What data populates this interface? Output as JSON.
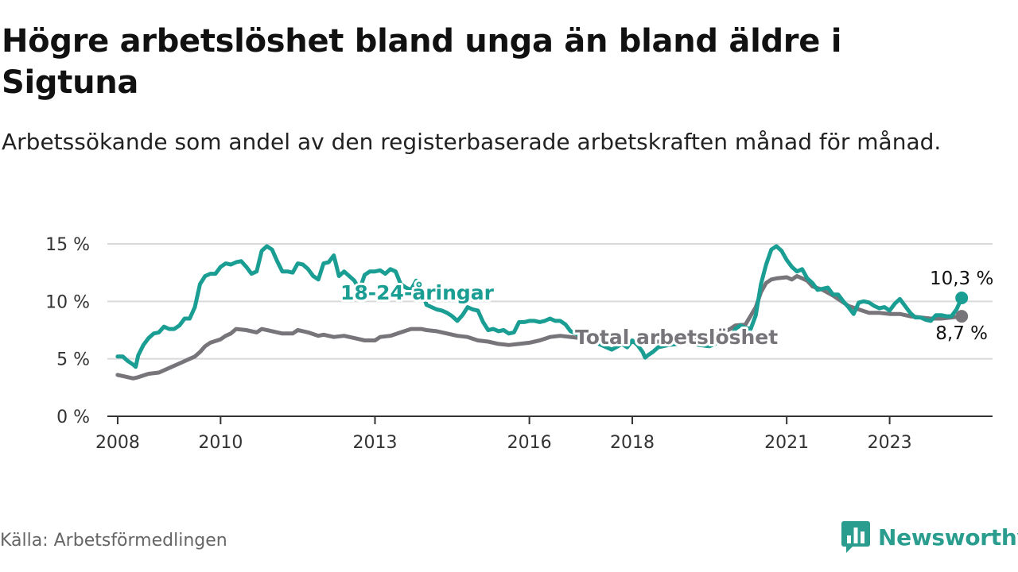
{
  "chart_data": {
    "type": "line",
    "title": "Högre arbetslöshet bland unga än bland äldre i Sigtuna",
    "subtitle": "Arbetssökande som andel av den registerbaserade arbetskraften månad för månad.",
    "source": "Källa: Arbetsförmedlingen",
    "brand": "Newsworthy",
    "ylim": [
      0,
      15
    ],
    "yticks": [
      {
        "value": 0,
        "label": "0 %"
      },
      {
        "value": 5,
        "label": "5 %"
      },
      {
        "value": 10,
        "label": "10 %"
      },
      {
        "value": 15,
        "label": "15 %"
      }
    ],
    "xlim": [
      2007.8,
      2025.0
    ],
    "xticks": [
      {
        "value": 2008,
        "label": "2008"
      },
      {
        "value": 2010,
        "label": "2010"
      },
      {
        "value": 2013,
        "label": "2013"
      },
      {
        "value": 2016,
        "label": "2016"
      },
      {
        "value": 2018,
        "label": "2018"
      },
      {
        "value": 2021,
        "label": "2021"
      },
      {
        "value": 2023,
        "label": "2023"
      }
    ],
    "series": [
      {
        "name": "18-24-åringar",
        "label": "18-24-åringar",
        "color": "#1a9e93",
        "end_label": "10,3 %",
        "points": [
          [
            2008.0,
            5.2
          ],
          [
            2008.1,
            5.2
          ],
          [
            2008.2,
            4.8
          ],
          [
            2008.3,
            4.5
          ],
          [
            2008.35,
            4.3
          ],
          [
            2008.4,
            5.3
          ],
          [
            2008.5,
            6.2
          ],
          [
            2008.6,
            6.8
          ],
          [
            2008.7,
            7.2
          ],
          [
            2008.8,
            7.3
          ],
          [
            2008.9,
            7.8
          ],
          [
            2009.0,
            7.6
          ],
          [
            2009.1,
            7.6
          ],
          [
            2009.2,
            7.9
          ],
          [
            2009.3,
            8.5
          ],
          [
            2009.4,
            8.5
          ],
          [
            2009.5,
            9.5
          ],
          [
            2009.6,
            11.5
          ],
          [
            2009.7,
            12.2
          ],
          [
            2009.8,
            12.4
          ],
          [
            2009.9,
            12.4
          ],
          [
            2010.0,
            13.0
          ],
          [
            2010.1,
            13.3
          ],
          [
            2010.2,
            13.2
          ],
          [
            2010.3,
            13.4
          ],
          [
            2010.4,
            13.5
          ],
          [
            2010.5,
            13.0
          ],
          [
            2010.6,
            12.4
          ],
          [
            2010.7,
            12.6
          ],
          [
            2010.8,
            14.4
          ],
          [
            2010.9,
            14.8
          ],
          [
            2011.0,
            14.5
          ],
          [
            2011.1,
            13.5
          ],
          [
            2011.2,
            12.6
          ],
          [
            2011.3,
            12.6
          ],
          [
            2011.4,
            12.5
          ],
          [
            2011.5,
            13.3
          ],
          [
            2011.6,
            13.2
          ],
          [
            2011.7,
            12.8
          ],
          [
            2011.8,
            12.2
          ],
          [
            2011.9,
            11.9
          ],
          [
            2012.0,
            13.3
          ],
          [
            2012.1,
            13.4
          ],
          [
            2012.2,
            14.0
          ],
          [
            2012.3,
            12.2
          ],
          [
            2012.4,
            12.6
          ],
          [
            2012.5,
            12.2
          ],
          [
            2012.6,
            11.8
          ],
          [
            2012.7,
            11.0
          ],
          [
            2012.8,
            12.3
          ],
          [
            2012.9,
            12.6
          ],
          [
            2013.0,
            12.6
          ],
          [
            2013.1,
            12.7
          ],
          [
            2013.2,
            12.4
          ],
          [
            2013.3,
            12.8
          ],
          [
            2013.4,
            12.6
          ],
          [
            2013.5,
            11.5
          ],
          [
            2013.6,
            11.2
          ],
          [
            2013.7,
            11.0
          ],
          [
            2013.8,
            11.8
          ],
          [
            2013.9,
            11.2
          ],
          [
            2014.0,
            9.7
          ],
          [
            2014.1,
            9.5
          ],
          [
            2014.2,
            9.3
          ],
          [
            2014.3,
            9.2
          ],
          [
            2014.4,
            9.0
          ],
          [
            2014.5,
            8.7
          ],
          [
            2014.6,
            8.3
          ],
          [
            2014.7,
            8.8
          ],
          [
            2014.8,
            9.5
          ],
          [
            2014.9,
            9.3
          ],
          [
            2015.0,
            9.2
          ],
          [
            2015.1,
            8.2
          ],
          [
            2015.2,
            7.5
          ],
          [
            2015.3,
            7.6
          ],
          [
            2015.4,
            7.4
          ],
          [
            2015.5,
            7.5
          ],
          [
            2015.6,
            7.2
          ],
          [
            2015.7,
            7.3
          ],
          [
            2015.8,
            8.2
          ],
          [
            2015.9,
            8.2
          ],
          [
            2016.0,
            8.3
          ],
          [
            2016.1,
            8.3
          ],
          [
            2016.2,
            8.2
          ],
          [
            2016.3,
            8.3
          ],
          [
            2016.4,
            8.5
          ],
          [
            2016.5,
            8.3
          ],
          [
            2016.6,
            8.3
          ],
          [
            2016.7,
            8.0
          ],
          [
            2016.8,
            7.4
          ],
          [
            2017.0,
            7.0
          ],
          [
            2017.2,
            6.6
          ],
          [
            2017.4,
            6.2
          ],
          [
            2017.6,
            5.8
          ],
          [
            2017.8,
            6.3
          ],
          [
            2017.9,
            6.0
          ],
          [
            2018.0,
            6.6
          ],
          [
            2018.1,
            6.2
          ],
          [
            2018.2,
            5.6
          ],
          [
            2018.25,
            5.1
          ],
          [
            2018.3,
            5.3
          ],
          [
            2018.4,
            5.6
          ],
          [
            2018.5,
            6.0
          ],
          [
            2018.7,
            6.2
          ],
          [
            2018.9,
            6.3
          ],
          [
            2019.1,
            6.4
          ],
          [
            2019.3,
            6.2
          ],
          [
            2019.5,
            6.1
          ],
          [
            2019.7,
            6.5
          ],
          [
            2019.9,
            6.8
          ],
          [
            2020.0,
            7.6
          ],
          [
            2020.1,
            7.9
          ],
          [
            2020.2,
            7.7
          ],
          [
            2020.3,
            7.6
          ],
          [
            2020.4,
            8.8
          ],
          [
            2020.5,
            11.5
          ],
          [
            2020.6,
            13.2
          ],
          [
            2020.7,
            14.5
          ],
          [
            2020.8,
            14.8
          ],
          [
            2020.9,
            14.4
          ],
          [
            2021.0,
            13.6
          ],
          [
            2021.1,
            13.0
          ],
          [
            2021.2,
            12.6
          ],
          [
            2021.3,
            12.8
          ],
          [
            2021.4,
            12.0
          ],
          [
            2021.5,
            11.6
          ],
          [
            2021.6,
            11.0
          ],
          [
            2021.7,
            11.1
          ],
          [
            2021.8,
            11.2
          ],
          [
            2021.9,
            10.6
          ],
          [
            2022.0,
            10.6
          ],
          [
            2022.1,
            10.0
          ],
          [
            2022.2,
            9.5
          ],
          [
            2022.3,
            8.9
          ],
          [
            2022.4,
            9.9
          ],
          [
            2022.5,
            10.0
          ],
          [
            2022.6,
            9.9
          ],
          [
            2022.7,
            9.6
          ],
          [
            2022.8,
            9.4
          ],
          [
            2022.9,
            9.5
          ],
          [
            2023.0,
            9.2
          ],
          [
            2023.1,
            9.8
          ],
          [
            2023.2,
            10.2
          ],
          [
            2023.3,
            9.6
          ],
          [
            2023.4,
            9.0
          ],
          [
            2023.5,
            8.6
          ],
          [
            2023.6,
            8.6
          ],
          [
            2023.7,
            8.4
          ],
          [
            2023.8,
            8.3
          ],
          [
            2023.9,
            8.8
          ],
          [
            2024.0,
            8.8
          ],
          [
            2024.1,
            8.7
          ],
          [
            2024.2,
            8.7
          ],
          [
            2024.3,
            9.3
          ],
          [
            2024.4,
            10.3
          ]
        ]
      },
      {
        "name": "Total arbetslöshet",
        "label": "Total arbetslöshet",
        "color": "#77757a",
        "end_label": "8,7 %",
        "points": [
          [
            2008.0,
            3.6
          ],
          [
            2008.2,
            3.4
          ],
          [
            2008.3,
            3.3
          ],
          [
            2008.4,
            3.4
          ],
          [
            2008.6,
            3.7
          ],
          [
            2008.8,
            3.8
          ],
          [
            2009.0,
            4.2
          ],
          [
            2009.2,
            4.6
          ],
          [
            2009.4,
            5.0
          ],
          [
            2009.5,
            5.2
          ],
          [
            2009.6,
            5.6
          ],
          [
            2009.7,
            6.1
          ],
          [
            2009.8,
            6.4
          ],
          [
            2010.0,
            6.7
          ],
          [
            2010.1,
            7.0
          ],
          [
            2010.2,
            7.2
          ],
          [
            2010.3,
            7.6
          ],
          [
            2010.5,
            7.5
          ],
          [
            2010.7,
            7.3
          ],
          [
            2010.8,
            7.6
          ],
          [
            2011.0,
            7.4
          ],
          [
            2011.2,
            7.2
          ],
          [
            2011.4,
            7.2
          ],
          [
            2011.5,
            7.5
          ],
          [
            2011.7,
            7.3
          ],
          [
            2011.9,
            7.0
          ],
          [
            2012.0,
            7.1
          ],
          [
            2012.2,
            6.9
          ],
          [
            2012.4,
            7.0
          ],
          [
            2012.6,
            6.8
          ],
          [
            2012.8,
            6.6
          ],
          [
            2013.0,
            6.6
          ],
          [
            2013.1,
            6.9
          ],
          [
            2013.3,
            7.0
          ],
          [
            2013.5,
            7.3
          ],
          [
            2013.7,
            7.6
          ],
          [
            2013.9,
            7.6
          ],
          [
            2014.0,
            7.5
          ],
          [
            2014.2,
            7.4
          ],
          [
            2014.4,
            7.2
          ],
          [
            2014.6,
            7.0
          ],
          [
            2014.8,
            6.9
          ],
          [
            2015.0,
            6.6
          ],
          [
            2015.2,
            6.5
          ],
          [
            2015.4,
            6.3
          ],
          [
            2015.6,
            6.2
          ],
          [
            2015.8,
            6.3
          ],
          [
            2016.0,
            6.4
          ],
          [
            2016.2,
            6.6
          ],
          [
            2016.4,
            6.9
          ],
          [
            2016.6,
            7.0
          ],
          [
            2016.8,
            6.9
          ],
          [
            2017.0,
            6.8
          ],
          [
            2017.3,
            6.5
          ],
          [
            2017.6,
            6.5
          ],
          [
            2017.9,
            6.5
          ],
          [
            2018.2,
            6.4
          ],
          [
            2018.5,
            6.5
          ],
          [
            2018.8,
            6.6
          ],
          [
            2019.1,
            6.6
          ],
          [
            2019.4,
            6.8
          ],
          [
            2019.7,
            7.2
          ],
          [
            2019.9,
            7.6
          ],
          [
            2020.0,
            7.9
          ],
          [
            2020.2,
            8.0
          ],
          [
            2020.4,
            9.5
          ],
          [
            2020.5,
            10.8
          ],
          [
            2020.6,
            11.6
          ],
          [
            2020.7,
            11.9
          ],
          [
            2020.8,
            12.0
          ],
          [
            2021.0,
            12.1
          ],
          [
            2021.1,
            11.9
          ],
          [
            2021.2,
            12.2
          ],
          [
            2021.3,
            12.0
          ],
          [
            2021.4,
            11.8
          ],
          [
            2021.5,
            11.3
          ],
          [
            2021.7,
            11.0
          ],
          [
            2021.9,
            10.5
          ],
          [
            2022.0,
            10.2
          ],
          [
            2022.2,
            9.6
          ],
          [
            2022.4,
            9.3
          ],
          [
            2022.6,
            9.0
          ],
          [
            2022.8,
            9.0
          ],
          [
            2023.0,
            8.9
          ],
          [
            2023.2,
            8.9
          ],
          [
            2023.4,
            8.7
          ],
          [
            2023.6,
            8.6
          ],
          [
            2023.8,
            8.5
          ],
          [
            2024.0,
            8.5
          ],
          [
            2024.2,
            8.6
          ],
          [
            2024.4,
            8.7
          ]
        ]
      }
    ]
  }
}
